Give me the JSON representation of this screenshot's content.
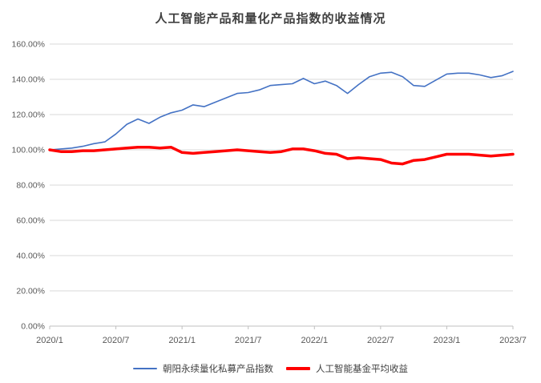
{
  "colors": {
    "background": "#FFFFFF",
    "grid": "#D9D9D9",
    "axis": "#BFBFBF",
    "tick_label": "#595959",
    "title": "#404040",
    "legend_text": "#404040",
    "series_blue": "#4472C4",
    "series_red": "#FF0000"
  },
  "chart_data": {
    "type": "line",
    "title": "人工智能产品和量化产品指数的收益情况",
    "xlabel": "",
    "ylabel": "",
    "ylim": [
      0,
      160
    ],
    "grid": true,
    "legend_position": "bottom",
    "y_ticks": [
      "0.00%",
      "20.00%",
      "40.00%",
      "60.00%",
      "80.00%",
      "100.00%",
      "120.00%",
      "140.00%",
      "160.00%"
    ],
    "x_tick_labels": [
      "2020/1",
      "2020/7",
      "2021/1",
      "2021/7",
      "2022/1",
      "2022/7",
      "2023/1",
      "2023/7"
    ],
    "x_tick_indices": [
      0,
      6,
      12,
      18,
      24,
      30,
      36,
      42
    ],
    "x": [
      "2020/1",
      "2020/2",
      "2020/3",
      "2020/4",
      "2020/5",
      "2020/6",
      "2020/7",
      "2020/8",
      "2020/9",
      "2020/10",
      "2020/11",
      "2020/12",
      "2021/1",
      "2021/2",
      "2021/3",
      "2021/4",
      "2021/5",
      "2021/6",
      "2021/7",
      "2021/8",
      "2021/9",
      "2021/10",
      "2021/11",
      "2021/12",
      "2022/1",
      "2022/2",
      "2022/3",
      "2022/4",
      "2022/5",
      "2022/6",
      "2022/7",
      "2022/8",
      "2022/9",
      "2022/10",
      "2022/11",
      "2022/12",
      "2023/1",
      "2023/2",
      "2023/3",
      "2023/4",
      "2023/5",
      "2023/6",
      "2023/7"
    ],
    "series": [
      {
        "name": "朝阳永续量化私募产品指数",
        "color": "#4472C4",
        "width": 1.6,
        "values": [
          100,
          100.5,
          101,
          102,
          103.5,
          104.5,
          109,
          114.5,
          117.5,
          115,
          118.5,
          121,
          122.5,
          125.5,
          124.5,
          127,
          129.5,
          132,
          132.5,
          134,
          136.5,
          137,
          137.5,
          140.5,
          137.5,
          139,
          136.5,
          132,
          137,
          141.5,
          143.5,
          144,
          141.5,
          136.5,
          136,
          139.5,
          143,
          143.5,
          143.5,
          142.5,
          141,
          142,
          144.5
        ]
      },
      {
        "name": "人工智能基金平均收益",
        "color": "#FF0000",
        "width": 3.5,
        "values": [
          100,
          99,
          99,
          99.5,
          99.5,
          100,
          100.5,
          101,
          101.5,
          101.5,
          101,
          101.5,
          98.5,
          98,
          98.5,
          99,
          99.5,
          100,
          99.5,
          99,
          98.5,
          99,
          100.5,
          100.5,
          99.5,
          98,
          97.5,
          95,
          95.5,
          95,
          94.5,
          92.5,
          92,
          94,
          94.5,
          96,
          97.5,
          97.5,
          97.5,
          97,
          96.5,
          97,
          97.5
        ]
      }
    ]
  }
}
